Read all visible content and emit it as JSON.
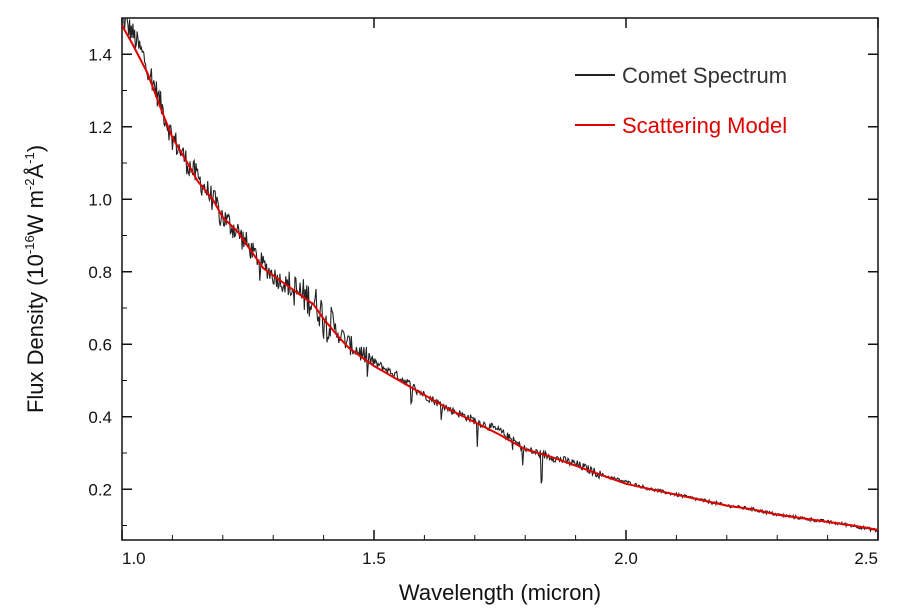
{
  "chart_data": {
    "type": "line",
    "xlabel": "Wavelength (micron)",
    "ylabel_parts": {
      "prefix": "Flux Density (10",
      "exp1": "-16",
      "mid": "W m",
      "exp2": "-2",
      "unit": "Å",
      "exp3": "-1",
      "suffix": ")"
    },
    "xlim": [
      1.0,
      2.5
    ],
    "ylim": [
      0.06,
      1.5
    ],
    "xticks": [
      1.0,
      1.5,
      2.0,
      2.5
    ],
    "xtick_labels": [
      "1.0",
      "1.5",
      "2.0",
      "2.5"
    ],
    "yticks": [
      0.2,
      0.4,
      0.6,
      0.8,
      1.0,
      1.2,
      1.4
    ],
    "ytick_labels": [
      "0.2",
      "0.4",
      "0.6",
      "0.8",
      "1.0",
      "1.2",
      "1.4"
    ],
    "legend_position": "top-right",
    "series": [
      {
        "name": "Comet Spectrum",
        "color": "#222222",
        "style": "noisy",
        "x": [
          1.0,
          1.02,
          1.05,
          1.08,
          1.1,
          1.13,
          1.15,
          1.18,
          1.2,
          1.23,
          1.25,
          1.28,
          1.3,
          1.33,
          1.35,
          1.38,
          1.4,
          1.43,
          1.45,
          1.48,
          1.5,
          1.55,
          1.6,
          1.65,
          1.7,
          1.75,
          1.8,
          1.85,
          1.9,
          1.95,
          2.0,
          2.05,
          2.1,
          2.15,
          2.2,
          2.25,
          2.3,
          2.35,
          2.4,
          2.45,
          2.5
        ],
        "values": [
          1.5,
          1.46,
          1.37,
          1.25,
          1.17,
          1.1,
          1.06,
          1.0,
          0.95,
          0.91,
          0.87,
          0.82,
          0.79,
          0.76,
          0.74,
          0.72,
          0.68,
          0.63,
          0.6,
          0.57,
          0.55,
          0.51,
          0.46,
          0.42,
          0.39,
          0.36,
          0.31,
          0.29,
          0.27,
          0.24,
          0.22,
          0.2,
          0.185,
          0.17,
          0.155,
          0.145,
          0.13,
          0.12,
          0.11,
          0.1,
          0.085
        ]
      },
      {
        "name": "Scattering Model",
        "color": "#e00000",
        "style": "smooth",
        "x": [
          1.0,
          1.02,
          1.05,
          1.08,
          1.1,
          1.13,
          1.15,
          1.18,
          1.2,
          1.23,
          1.25,
          1.28,
          1.3,
          1.33,
          1.35,
          1.38,
          1.4,
          1.43,
          1.45,
          1.48,
          1.5,
          1.55,
          1.6,
          1.65,
          1.7,
          1.75,
          1.8,
          1.85,
          1.9,
          1.95,
          2.0,
          2.05,
          2.1,
          2.15,
          2.2,
          2.25,
          2.3,
          2.35,
          2.4,
          2.45,
          2.5
        ],
        "values": [
          1.48,
          1.43,
          1.35,
          1.24,
          1.17,
          1.1,
          1.05,
          1.0,
          0.95,
          0.91,
          0.87,
          0.81,
          0.79,
          0.76,
          0.74,
          0.71,
          0.67,
          0.62,
          0.59,
          0.56,
          0.54,
          0.5,
          0.46,
          0.42,
          0.385,
          0.35,
          0.31,
          0.29,
          0.265,
          0.24,
          0.215,
          0.2,
          0.185,
          0.17,
          0.155,
          0.145,
          0.13,
          0.12,
          0.11,
          0.1,
          0.088
        ]
      }
    ]
  }
}
